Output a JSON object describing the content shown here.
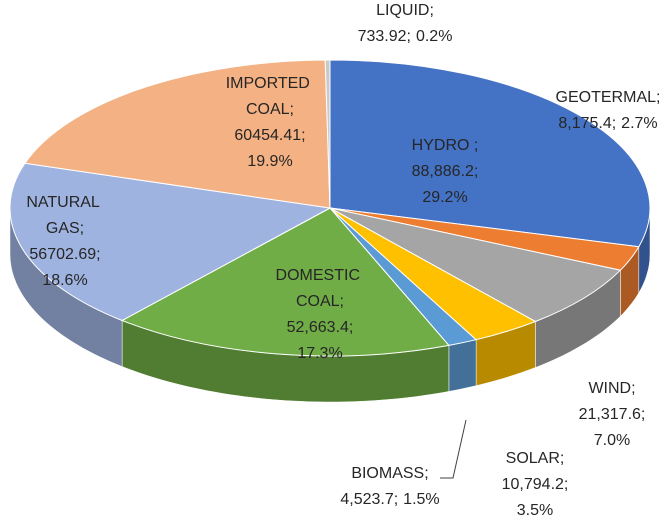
{
  "chart_data": {
    "type": "pie3d",
    "categories": [
      "HYDRO ;",
      "GEOTERMAL;",
      "WIND;",
      "SOLAR;",
      "BIOMASS;",
      "DOMESTIC COAL;",
      "NATURAL GAS;",
      "IMPORTED COAL;",
      "LIQUID;"
    ],
    "values": [
      88886.2,
      8175.4,
      21317.6,
      10794.2,
      4523.7,
      52663.4,
      56702.69,
      60454.41,
      733.92
    ],
    "value_labels": [
      "88,886.2;",
      "8,175.4;",
      "21,317.6;",
      "10,794.2;",
      "4,523.7;",
      "52,663.4;",
      "56702.69;",
      "60454.41;",
      "733.92;"
    ],
    "percents": [
      29.2,
      2.7,
      7.0,
      3.5,
      1.5,
      17.3,
      18.6,
      19.9,
      0.2
    ],
    "percent_labels": [
      "29.2%",
      "2.7%",
      "7.0%",
      "3.5%",
      "1.5%",
      "17.3%",
      "18.6%",
      "19.9%",
      "0.2%"
    ],
    "colors": [
      "#4472c4",
      "#ed7d31",
      "#a5a5a5",
      "#ffc000",
      "#5b9bd5",
      "#70ad47",
      "#9fb3e0",
      "#f4b183",
      "#c9c9c9"
    ]
  }
}
